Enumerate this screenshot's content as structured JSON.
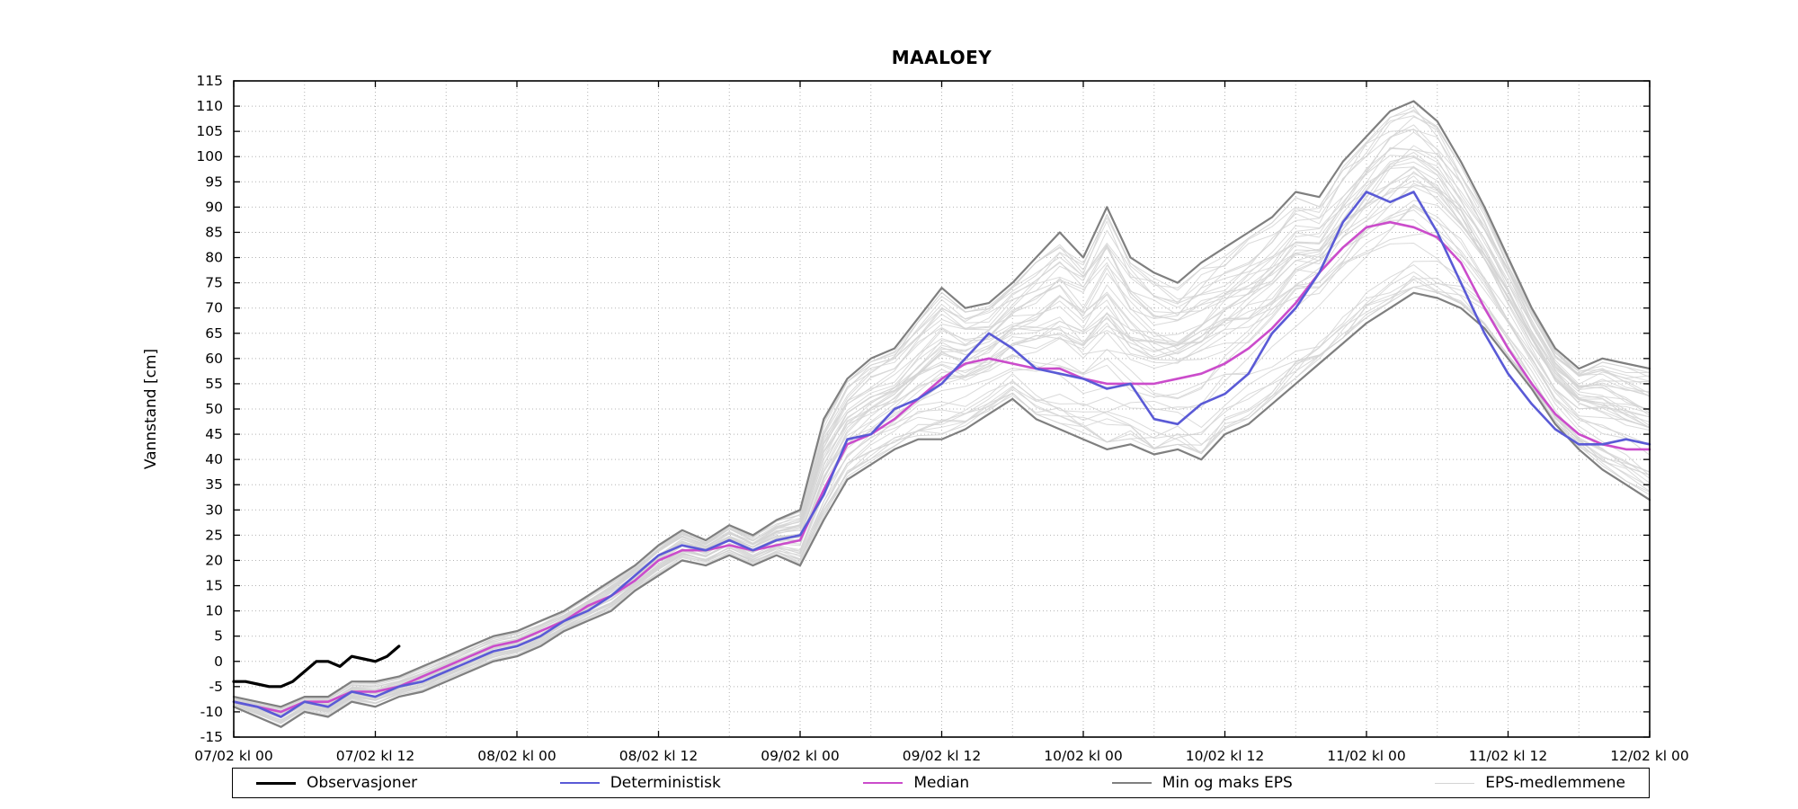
{
  "title": "MAALOEY",
  "legend": {
    "items": [
      {
        "label": "Observasjoner",
        "color": "#000000",
        "line_width": 3
      },
      {
        "label": "Deterministisk",
        "color": "#5a5ad6",
        "line_width": 2.5
      },
      {
        "label": "Median",
        "color": "#cb4ccb",
        "line_width": 2.5
      },
      {
        "label": "Min og maks EPS",
        "color": "#7f7f7f",
        "line_width": 2.5
      },
      {
        "label": "EPS-medlemmene",
        "color": "#d3d3d3",
        "line_width": 1.2
      }
    ]
  },
  "chart_data": {
    "type": "line",
    "title": "MAALOEY",
    "xlabel": "",
    "ylabel": "Vannstand [cm]",
    "xlim": [
      0,
      120
    ],
    "ylim": [
      -15,
      115
    ],
    "x_unit": "hours from 07/02 kl 00",
    "x_tick_times": [
      0,
      12,
      24,
      36,
      48,
      60,
      72,
      84,
      96,
      108,
      120
    ],
    "x_tick_labels": [
      "07/02 kl 00",
      "07/02 kl 12",
      "08/02 kl 00",
      "08/02 kl 12",
      "09/02 kl 00",
      "09/02 kl 12",
      "10/02 kl 00",
      "10/02 kl 12",
      "11/02 kl 00",
      "11/02 kl 12",
      "12/02 kl 00"
    ],
    "y_ticks": [
      -15,
      -10,
      -5,
      0,
      5,
      10,
      15,
      20,
      25,
      30,
      35,
      40,
      45,
      50,
      55,
      60,
      65,
      70,
      75,
      80,
      85,
      90,
      95,
      100,
      105,
      110,
      115
    ],
    "grid": {
      "show": true,
      "color": "#b4b4b4",
      "style": "dotted",
      "x_step_hours": 6,
      "y_step": 5
    },
    "x": [
      0,
      2,
      4,
      6,
      8,
      10,
      12,
      14,
      16,
      18,
      20,
      22,
      24,
      26,
      28,
      30,
      32,
      34,
      36,
      38,
      40,
      42,
      44,
      46,
      48,
      50,
      52,
      54,
      56,
      58,
      60,
      62,
      64,
      66,
      68,
      70,
      72,
      74,
      76,
      78,
      80,
      82,
      84,
      86,
      88,
      90,
      92,
      94,
      96,
      98,
      100,
      102,
      104,
      106,
      108,
      110,
      112,
      114,
      116,
      118,
      120
    ],
    "series": [
      {
        "name": "Observasjoner",
        "role": "observations",
        "color": "#000000",
        "width": 3.2,
        "x": [
          0,
          1,
          2,
          3,
          4,
          5,
          6,
          7,
          8,
          9,
          10,
          11,
          12,
          13,
          14
        ],
        "values": [
          -4,
          -4,
          -4.5,
          -5,
          -5,
          -4,
          -2,
          0,
          0,
          -1,
          1,
          0.5,
          0,
          1,
          3
        ]
      },
      {
        "name": "Deterministisk",
        "role": "deterministic",
        "color": "#5a5ad6",
        "width": 2.6,
        "values": [
          -8,
          -9,
          -11,
          -8,
          -9,
          -6,
          -7,
          -5,
          -4,
          -2,
          0,
          2,
          3,
          5,
          8,
          10,
          13,
          17,
          21,
          23,
          22,
          24,
          22,
          24,
          25,
          33,
          44,
          45,
          50,
          52,
          55,
          60,
          65,
          62,
          58,
          57,
          56,
          54,
          55,
          48,
          47,
          51,
          53,
          57,
          65,
          70,
          77,
          87,
          93,
          91,
          93,
          85,
          75,
          65,
          57,
          51,
          46,
          43,
          43,
          44,
          43
        ]
      },
      {
        "name": "Median",
        "role": "median",
        "color": "#cb4ccb",
        "width": 2.6,
        "values": [
          -8,
          -9,
          -10,
          -8,
          -8,
          -6,
          -6,
          -5,
          -3,
          -1,
          1,
          3,
          4,
          6,
          8,
          11,
          13,
          16,
          20,
          22,
          22,
          23,
          22,
          23,
          24,
          34,
          43,
          45,
          48,
          52,
          56,
          59,
          60,
          59,
          58,
          58,
          56,
          55,
          55,
          55,
          56,
          57,
          59,
          62,
          66,
          71,
          77,
          82,
          86,
          87,
          86,
          84,
          79,
          70,
          62,
          55,
          49,
          45,
          43,
          42,
          42
        ]
      },
      {
        "name": "Min og maks EPS",
        "role": "envelope",
        "color": "#7f7f7f",
        "width": 2.2,
        "values_max": [
          -7,
          -8,
          -9,
          -7,
          -7,
          -4,
          -4,
          -3,
          -1,
          1,
          3,
          5,
          6,
          8,
          10,
          13,
          16,
          19,
          23,
          26,
          24,
          27,
          25,
          28,
          30,
          48,
          56,
          60,
          62,
          68,
          74,
          70,
          71,
          75,
          80,
          85,
          80,
          90,
          80,
          77,
          75,
          79,
          82,
          85,
          88,
          93,
          92,
          99,
          104,
          109,
          111,
          107,
          99,
          90,
          80,
          70,
          62,
          58,
          60,
          59,
          58
        ],
        "values_min": [
          -9,
          -11,
          -13,
          -10,
          -11,
          -8,
          -9,
          -7,
          -6,
          -4,
          -2,
          0,
          1,
          3,
          6,
          8,
          10,
          14,
          17,
          20,
          19,
          21,
          19,
          21,
          19,
          28,
          36,
          39,
          42,
          44,
          44,
          46,
          49,
          52,
          48,
          46,
          44,
          42,
          43,
          41,
          42,
          40,
          45,
          47,
          51,
          55,
          59,
          63,
          67,
          70,
          73,
          72,
          70,
          66,
          60,
          54,
          47,
          42,
          38,
          35,
          32
        ]
      },
      {
        "name": "EPS-medlemmene",
        "role": "ensemble-members",
        "color": "#d3d3d3",
        "width": 1,
        "count": 45,
        "seed": 20,
        "approximation": "individual member traces not readable at screenshot scale; rendered as seeded blends within the min-max envelope"
      }
    ]
  }
}
